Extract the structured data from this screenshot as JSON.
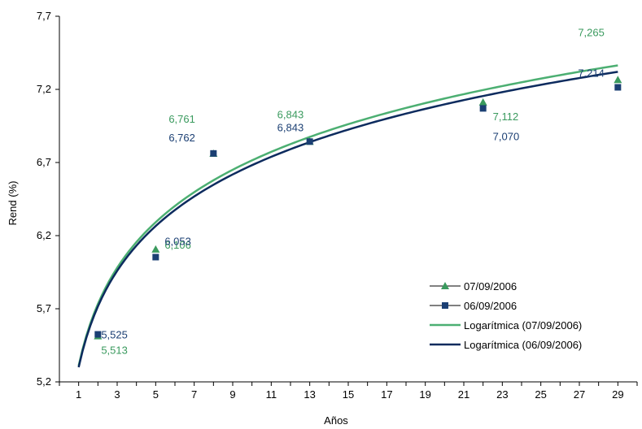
{
  "chart_data": {
    "type": "scatter",
    "title": "",
    "xlabel": "Años",
    "ylabel": "Rend (%)",
    "xlim": [
      0,
      30
    ],
    "ylim": [
      5.2,
      7.7
    ],
    "x_ticks": [
      1,
      3,
      5,
      7,
      9,
      11,
      13,
      15,
      17,
      19,
      21,
      23,
      25,
      27,
      29
    ],
    "x_tick_labels": [
      "1",
      "3",
      "5",
      "7",
      "9",
      "11",
      "13",
      "15",
      "17",
      "19",
      "21",
      "23",
      "25",
      "27",
      "29"
    ],
    "y_ticks": [
      5.2,
      5.7,
      6.2,
      6.7,
      7.2,
      7.7
    ],
    "y_tick_labels": [
      "5,2",
      "5,7",
      "6,2",
      "6,7",
      "7,2",
      "7,7"
    ],
    "grid": false,
    "legend_position": "bottom-right",
    "series": [
      {
        "name": "07/09/2006",
        "marker": "triangle",
        "color": "#3a9a5e",
        "points": [
          {
            "x": 2,
            "y": 5.513,
            "label": "5,513"
          },
          {
            "x": 5,
            "y": 6.106,
            "label": "6,106"
          },
          {
            "x": 8,
            "y": 6.761,
            "label": "6,761"
          },
          {
            "x": 13,
            "y": 6.843,
            "label": "6,843"
          },
          {
            "x": 22,
            "y": 7.112,
            "label": "7,112"
          },
          {
            "x": 29,
            "y": 7.265,
            "label": "7,265"
          }
        ]
      },
      {
        "name": "06/09/2006",
        "marker": "square",
        "color": "#1b3f73",
        "points": [
          {
            "x": 2,
            "y": 5.525,
            "label": "5,525"
          },
          {
            "x": 5,
            "y": 6.053,
            "label": "6,053"
          },
          {
            "x": 8,
            "y": 6.762,
            "label": "6,762"
          },
          {
            "x": 13,
            "y": 6.843,
            "label": "6,843"
          },
          {
            "x": 22,
            "y": 7.07,
            "label": "7,070"
          },
          {
            "x": 29,
            "y": 7.214,
            "label": "7,214"
          }
        ]
      }
    ],
    "trendlines": [
      {
        "name": "Logarítmica (07/09/2006)",
        "type": "logarithmic",
        "color": "#4caf72",
        "a": 5.31,
        "b": 0.61,
        "x_range": [
          1,
          29
        ]
      },
      {
        "name": "Logarítmica (06/09/2006)",
        "type": "logarithmic",
        "color": "#0d2b5e",
        "a": 5.3,
        "b": 0.6,
        "x_range": [
          1,
          29
        ]
      }
    ]
  }
}
